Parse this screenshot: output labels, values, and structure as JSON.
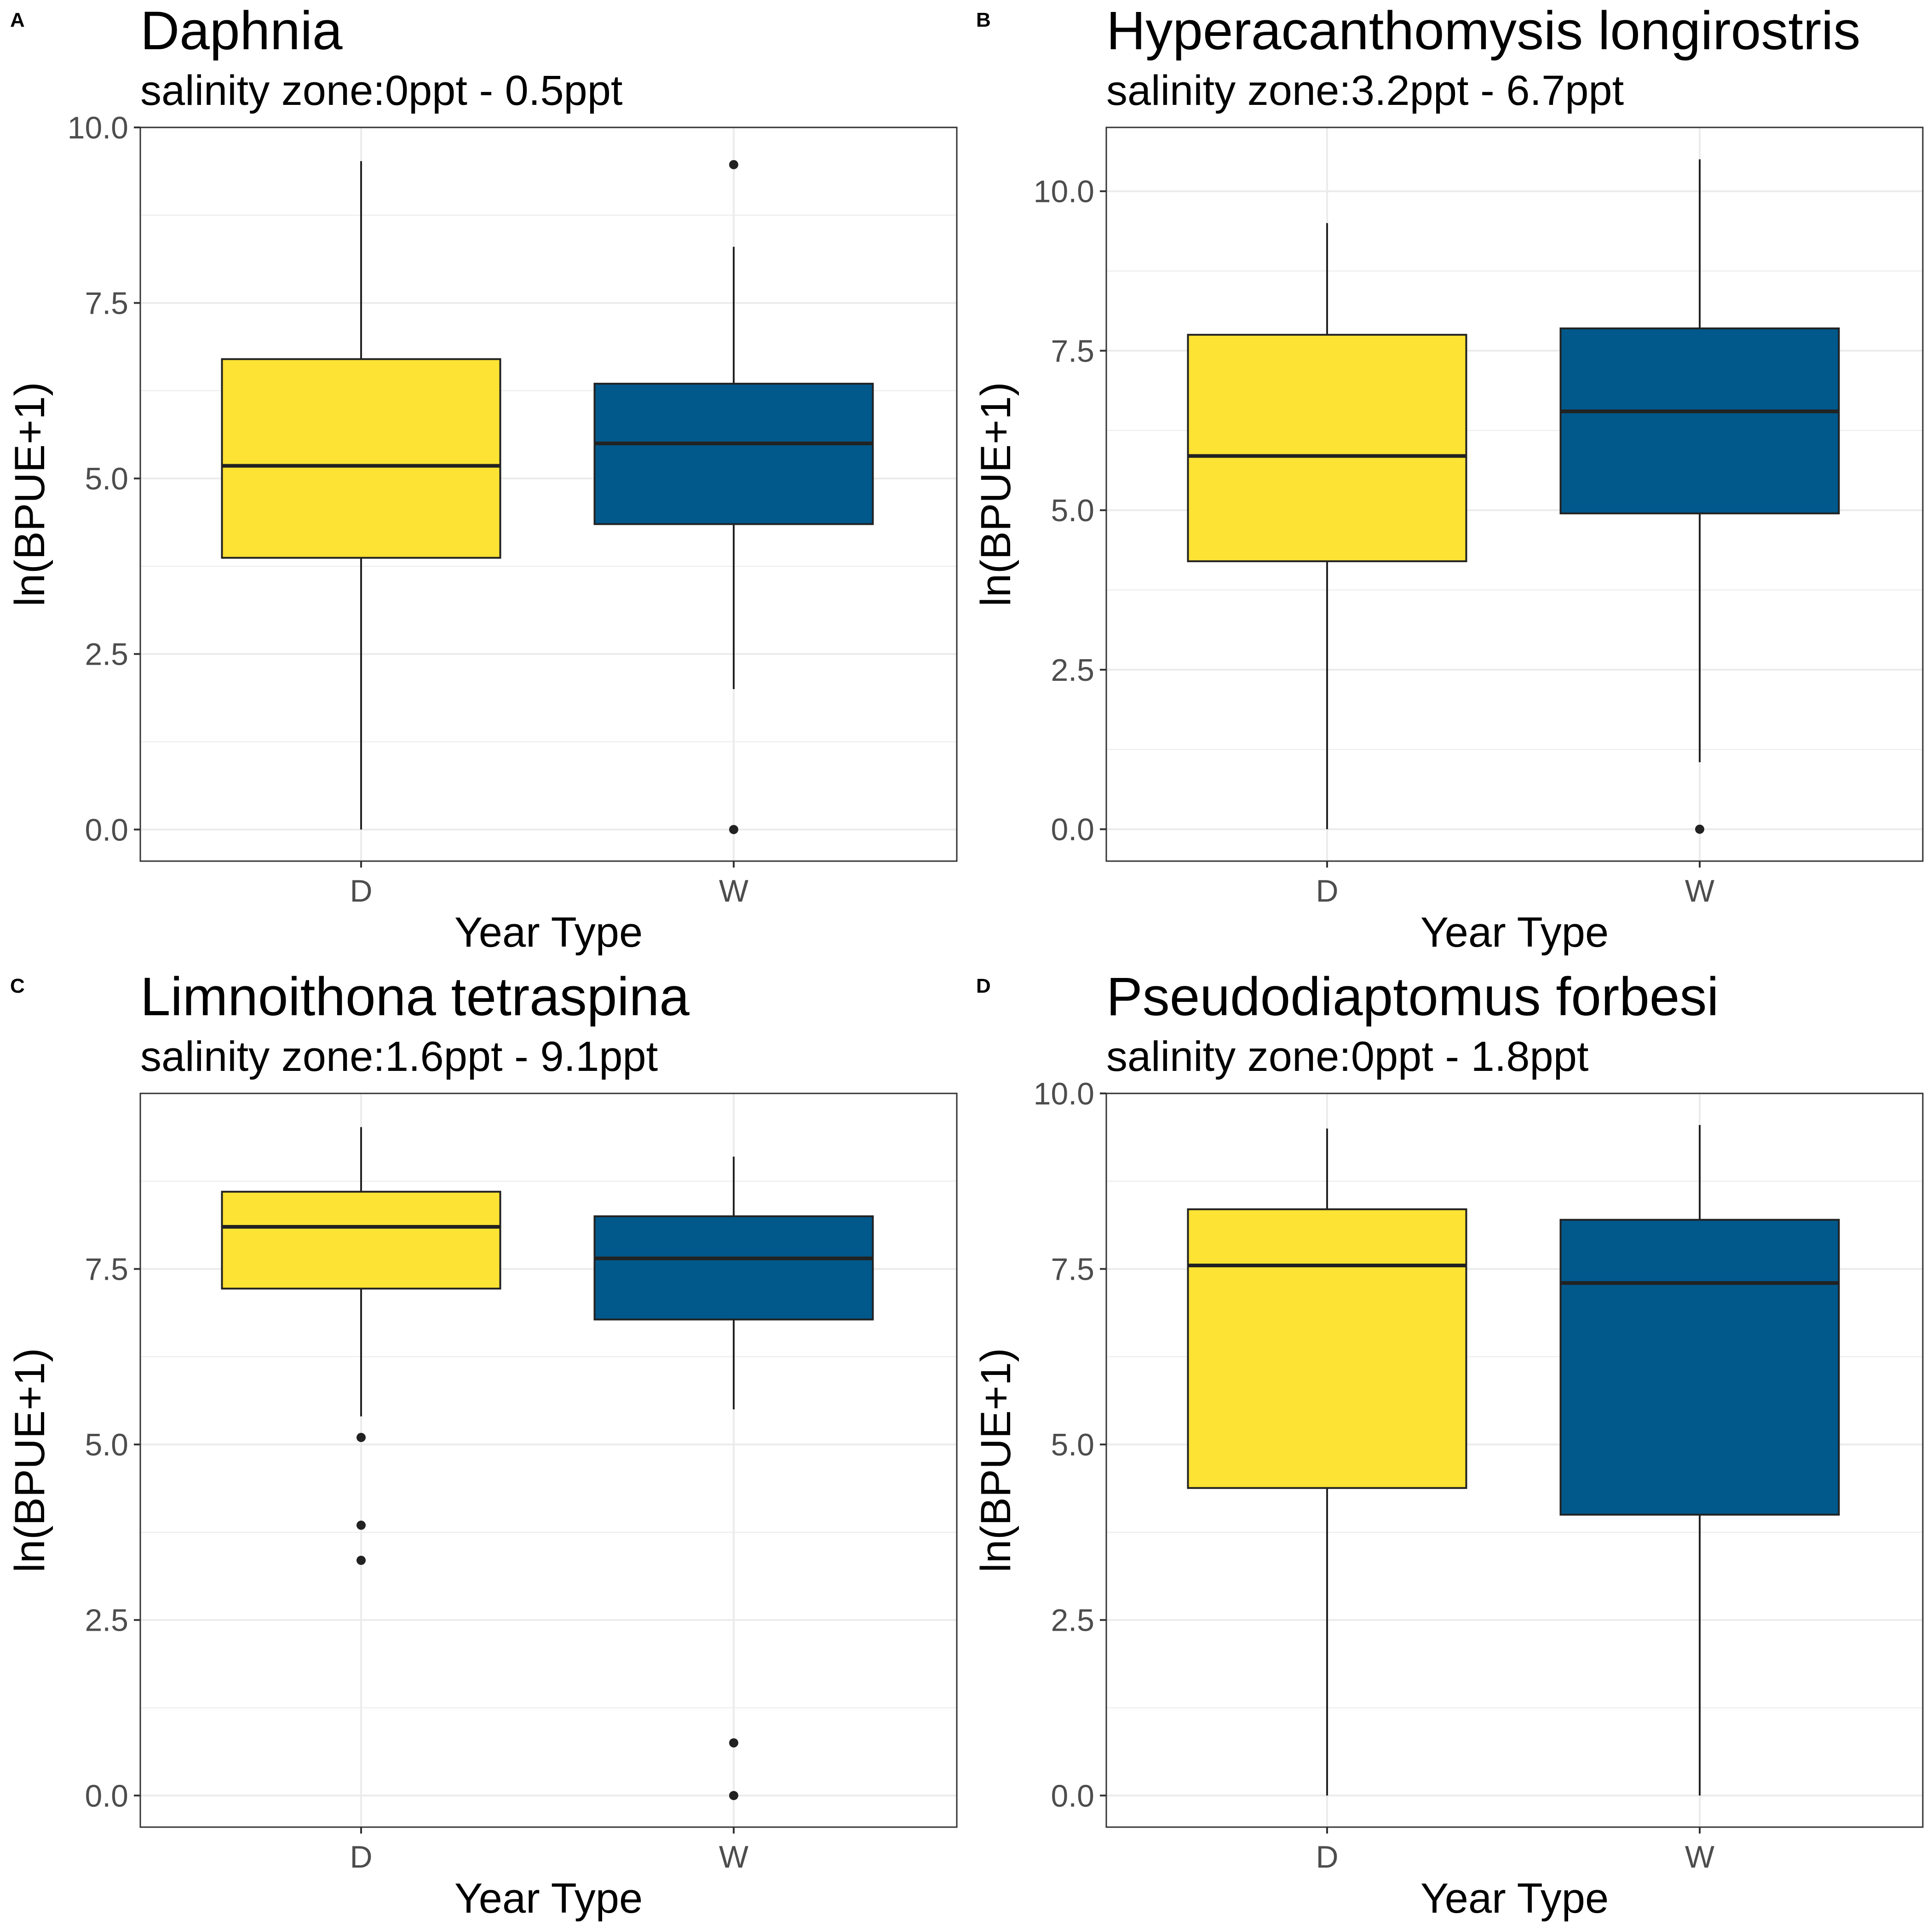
{
  "figure": {
    "fills": {
      "D": "#fde333",
      "W": "#00588b"
    },
    "outline_color": "#222222",
    "grid_color": "#ebebeb",
    "background": "#ffffff"
  },
  "chart_data": [
    {
      "type": "box",
      "tag": "A",
      "title": "Daphnia",
      "subtitle": "salinity zone:0ppt - 0.5ppt",
      "xlabel": "Year Type",
      "ylabel": "ln(BPUE+1)",
      "ylim": [
        -0.45,
        10.0
      ],
      "yticks": [
        0,
        2.5,
        5,
        7.5,
        10
      ],
      "ytick_labels": [
        "0.0",
        "2.5",
        "5.0",
        "7.5",
        "10.0"
      ],
      "grid": true,
      "legend": "none",
      "categories": [
        "D",
        "W"
      ],
      "boxes": [
        {
          "category": "D",
          "whisker_low": 0.0,
          "q1": 3.87,
          "median": 5.18,
          "q3": 6.7,
          "whisker_high": 9.52,
          "outliers": []
        },
        {
          "category": "W",
          "whisker_low": 2.0,
          "q1": 4.35,
          "median": 5.5,
          "q3": 6.35,
          "whisker_high": 8.3,
          "outliers": [
            9.47,
            0.0
          ]
        }
      ]
    },
    {
      "type": "box",
      "tag": "B",
      "title": "Hyperacanthomysis longirostris",
      "subtitle": "salinity zone:3.2ppt - 6.7ppt",
      "xlabel": "Year Type",
      "ylabel": "ln(BPUE+1)",
      "ylim": [
        -0.5,
        11.0
      ],
      "yticks": [
        0,
        2.5,
        5,
        7.5,
        10
      ],
      "ytick_labels": [
        "0.0",
        "2.5",
        "5.0",
        "7.5",
        "10.0"
      ],
      "grid": true,
      "legend": "none",
      "categories": [
        "D",
        "W"
      ],
      "boxes": [
        {
          "category": "D",
          "whisker_low": 0.0,
          "q1": 4.2,
          "median": 5.85,
          "q3": 7.75,
          "whisker_high": 9.5,
          "outliers": []
        },
        {
          "category": "W",
          "whisker_low": 1.05,
          "q1": 4.95,
          "median": 6.55,
          "q3": 7.85,
          "whisker_high": 10.5,
          "outliers": [
            0.0
          ]
        }
      ]
    },
    {
      "type": "box",
      "tag": "C",
      "title": "Limnoithona tetraspina",
      "subtitle": "salinity zone:1.6ppt - 9.1ppt",
      "xlabel": "Year Type",
      "ylabel": "ln(BPUE+1)",
      "ylim": [
        -0.45,
        10.0
      ],
      "yticks": [
        0,
        2.5,
        5,
        7.5
      ],
      "ytick_labels": [
        "0.0",
        "2.5",
        "5.0",
        "7.5"
      ],
      "grid": true,
      "legend": "none",
      "categories": [
        "D",
        "W"
      ],
      "boxes": [
        {
          "category": "D",
          "whisker_low": 5.4,
          "q1": 7.22,
          "median": 8.1,
          "q3": 8.6,
          "whisker_high": 9.52,
          "outliers": [
            5.1,
            3.85,
            3.35
          ]
        },
        {
          "category": "W",
          "whisker_low": 5.5,
          "q1": 6.78,
          "median": 7.65,
          "q3": 8.25,
          "whisker_high": 9.1,
          "outliers": [
            0.75,
            0.0
          ]
        }
      ]
    },
    {
      "type": "box",
      "tag": "D",
      "title": "Pseudodiaptomus forbesi",
      "subtitle": "salinity zone:0ppt - 1.8ppt",
      "xlabel": "Year Type",
      "ylabel": "ln(BPUE+1)",
      "ylim": [
        -0.45,
        10.0
      ],
      "yticks": [
        0,
        2.5,
        5,
        7.5,
        10
      ],
      "ytick_labels": [
        "0.0",
        "2.5",
        "5.0",
        "7.5",
        "10.0"
      ],
      "grid": true,
      "legend": "none",
      "categories": [
        "D",
        "W"
      ],
      "boxes": [
        {
          "category": "D",
          "whisker_low": 0.0,
          "q1": 4.38,
          "median": 7.55,
          "q3": 8.35,
          "whisker_high": 9.5,
          "outliers": []
        },
        {
          "category": "W",
          "whisker_low": 0.0,
          "q1": 4.0,
          "median": 7.3,
          "q3": 8.2,
          "whisker_high": 9.55,
          "outliers": []
        }
      ]
    }
  ]
}
